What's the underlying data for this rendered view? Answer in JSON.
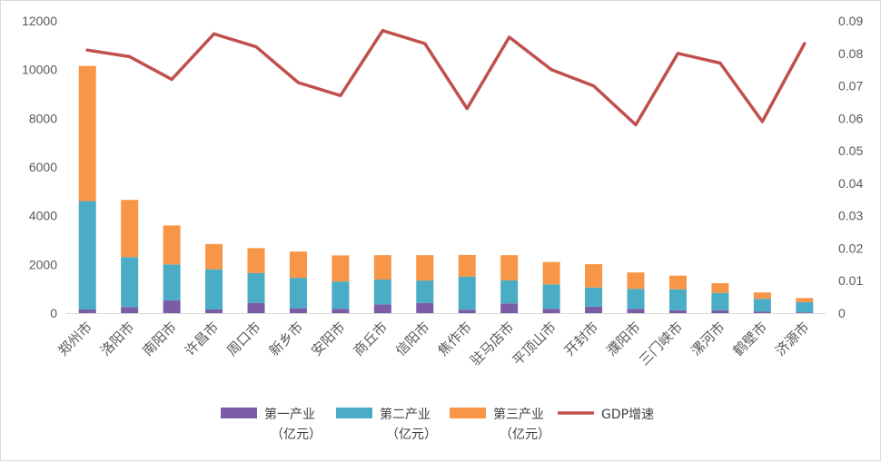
{
  "chart_data": {
    "type": "bar",
    "stacked": true,
    "categories": [
      "郑州市",
      "洛阳市",
      "南阳市",
      "许昌市",
      "周口市",
      "新乡市",
      "安阳市",
      "商丘市",
      "信阳市",
      "焦作市",
      "驻马店市",
      "平顶山市",
      "开封市",
      "濮阳市",
      "三门峡市",
      "漯河市",
      "鹤壁市",
      "济源市"
    ],
    "series": [
      {
        "name": "第一产业（亿元）",
        "color": "#7b5ca6",
        "axis": "left",
        "values": [
          150,
          250,
          520,
          150,
          420,
          200,
          180,
          360,
          420,
          140,
          400,
          180,
          270,
          180,
          120,
          120,
          70,
          30
        ]
      },
      {
        "name": "第二产业（亿元）",
        "color": "#4bacc6",
        "axis": "left",
        "values": [
          4450,
          2050,
          1480,
          1650,
          1230,
          1250,
          1120,
          1020,
          920,
          1360,
          950,
          1000,
          780,
          820,
          860,
          710,
          520,
          420
        ]
      },
      {
        "name": "第三产业（亿元）",
        "color": "#f79646",
        "axis": "left",
        "values": [
          5550,
          2350,
          1600,
          1040,
          1020,
          1080,
          1070,
          1000,
          1040,
          890,
          1030,
          920,
          960,
          670,
          560,
          400,
          260,
          170
        ]
      },
      {
        "name": "GDP增速",
        "color": "#c0504d",
        "axis": "right",
        "type": "line",
        "values": [
          0.081,
          0.079,
          0.072,
          0.086,
          0.082,
          0.071,
          0.067,
          0.087,
          0.083,
          0.063,
          0.085,
          0.075,
          0.07,
          0.058,
          0.08,
          0.077,
          0.059,
          0.083
        ]
      }
    ],
    "y_left": {
      "min": 0,
      "max": 12000,
      "ticks": [
        "0",
        "2000",
        "4000",
        "6000",
        "8000",
        "10000",
        "12000"
      ]
    },
    "y_right": {
      "min": 0,
      "max": 0.09,
      "ticks": [
        "0",
        "0.01",
        "0.02",
        "0.03",
        "0.04",
        "0.05",
        "0.06",
        "0.07",
        "0.08",
        "0.09"
      ]
    },
    "grid": false,
    "legend_position": "bottom",
    "legend": [
      {
        "line1": "第一产业",
        "line2": "（亿元）",
        "color": "#7b5ca6",
        "kind": "box"
      },
      {
        "line1": "第二产业",
        "line2": "（亿元）",
        "color": "#4bacc6",
        "kind": "box"
      },
      {
        "line1": "第三产业",
        "line2": "（亿元）",
        "color": "#f79646",
        "kind": "box"
      },
      {
        "line1": "GDP增速",
        "line2": "",
        "color": "#c0504d",
        "kind": "line"
      }
    ]
  }
}
